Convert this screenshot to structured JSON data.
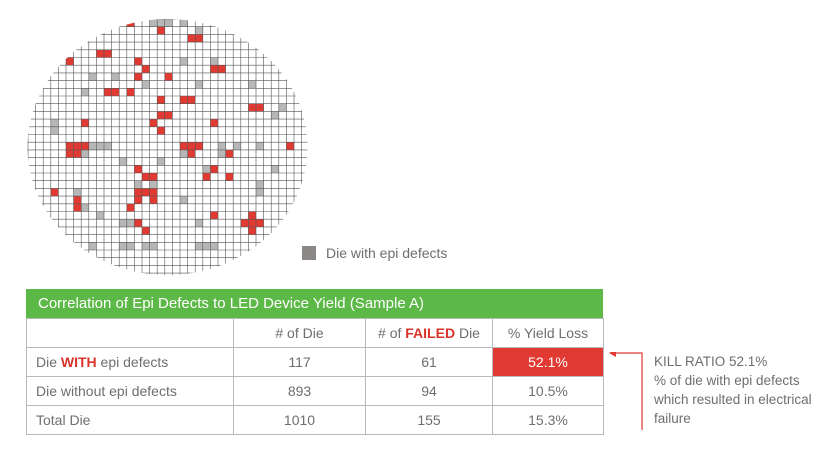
{
  "legend": {
    "label": "Die with epi defects",
    "swatch_color": "#8a8786"
  },
  "wafer_map": {
    "description_colors": {
      "failed": "#e03a33",
      "epi_defect": "#b7b7b7",
      "grid": "#555555"
    },
    "grid_cols": 33,
    "grid_rows": 33,
    "red_cells": [
      [
        10,
        0
      ],
      [
        13,
        0
      ],
      [
        17,
        1
      ],
      [
        21,
        2
      ],
      [
        22,
        2
      ],
      [
        9,
        4
      ],
      [
        10,
        4
      ],
      [
        5,
        5
      ],
      [
        14,
        5
      ],
      [
        24,
        6
      ],
      [
        25,
        6
      ],
      [
        15,
        6
      ],
      [
        18,
        7
      ],
      [
        14,
        7
      ],
      [
        13,
        9
      ],
      [
        11,
        9
      ],
      [
        10,
        9
      ],
      [
        20,
        10
      ],
      [
        21,
        10
      ],
      [
        17,
        10
      ],
      [
        29,
        11
      ],
      [
        30,
        11
      ],
      [
        18,
        12
      ],
      [
        17,
        12
      ],
      [
        7,
        13
      ],
      [
        16,
        13
      ],
      [
        24,
        13
      ],
      [
        17,
        14
      ],
      [
        5,
        16
      ],
      [
        6,
        16
      ],
      [
        7,
        16
      ],
      [
        20,
        16
      ],
      [
        21,
        16
      ],
      [
        22,
        16
      ],
      [
        34,
        16
      ],
      [
        5,
        17
      ],
      [
        6,
        17
      ],
      [
        26,
        17
      ],
      [
        21,
        17
      ],
      [
        14,
        19
      ],
      [
        24,
        19
      ],
      [
        23,
        20
      ],
      [
        16,
        20
      ],
      [
        26,
        20
      ],
      [
        15,
        20
      ],
      [
        3,
        22
      ],
      [
        14,
        22
      ],
      [
        15,
        22
      ],
      [
        16,
        22
      ],
      [
        6,
        23
      ],
      [
        14,
        23
      ],
      [
        16,
        23
      ],
      [
        6,
        24
      ],
      [
        13,
        24
      ],
      [
        24,
        25
      ],
      [
        29,
        25
      ],
      [
        29,
        26
      ],
      [
        30,
        26
      ],
      [
        14,
        26
      ],
      [
        28,
        26
      ],
      [
        15,
        27
      ],
      [
        29,
        27
      ]
    ],
    "grey_cells": [
      [
        16,
        0
      ],
      [
        17,
        0
      ],
      [
        18,
        0
      ],
      [
        20,
        0
      ],
      [
        22,
        1
      ],
      [
        8,
        7
      ],
      [
        20,
        5
      ],
      [
        24,
        5
      ],
      [
        11,
        7
      ],
      [
        22,
        8
      ],
      [
        29,
        8
      ],
      [
        15,
        8
      ],
      [
        7,
        9
      ],
      [
        17,
        10
      ],
      [
        33,
        11
      ],
      [
        32,
        12
      ],
      [
        3,
        13
      ],
      [
        3,
        14
      ],
      [
        8,
        16
      ],
      [
        9,
        16
      ],
      [
        10,
        16
      ],
      [
        25,
        16
      ],
      [
        27,
        16
      ],
      [
        30,
        16
      ],
      [
        7,
        17
      ],
      [
        25,
        17
      ],
      [
        20,
        17
      ],
      [
        17,
        18
      ],
      [
        12,
        18
      ],
      [
        32,
        19
      ],
      [
        23,
        19
      ],
      [
        16,
        21
      ],
      [
        30,
        21
      ],
      [
        14,
        21
      ],
      [
        6,
        22
      ],
      [
        14,
        22
      ],
      [
        30,
        22
      ],
      [
        20,
        23
      ],
      [
        7,
        24
      ],
      [
        24,
        25
      ],
      [
        9,
        25
      ],
      [
        12,
        26
      ],
      [
        22,
        26
      ],
      [
        30,
        26
      ],
      [
        13,
        26
      ],
      [
        8,
        29
      ],
      [
        12,
        29
      ],
      [
        13,
        29
      ],
      [
        15,
        29
      ],
      [
        16,
        29
      ],
      [
        22,
        29
      ],
      [
        23,
        29
      ],
      [
        24,
        29
      ]
    ]
  },
  "table": {
    "title": "Correlation of Epi Defects to LED Device Yield (Sample A)",
    "title_bg": "#5cb947",
    "headers": {
      "blank": "",
      "num_die": "# of Die",
      "num_failed_pre": "# of ",
      "num_failed_em": "FAILED",
      "num_failed_post": " Die",
      "yield_loss": "% Yield Loss"
    },
    "rows": [
      {
        "label_pre": "Die ",
        "label_em": "WITH",
        "label_post": " epi defects",
        "num_die": "117",
        "num_failed": "61",
        "yield_loss": "52.1%"
      },
      {
        "label": "Die without epi defects",
        "num_die": "893",
        "num_failed": "94",
        "yield_loss": "10.5%"
      },
      {
        "label": "Total Die",
        "num_die": "1010",
        "num_failed": "155",
        "yield_loss": "15.3%"
      }
    ],
    "highlight_color": "#e03a33"
  },
  "callout": {
    "line1": "KILL RATIO 52.1%",
    "line2": "% of die with epi defects",
    "line3": "which resulted in electrical",
    "line4": "failure",
    "arrow_color": "#e03a33"
  }
}
